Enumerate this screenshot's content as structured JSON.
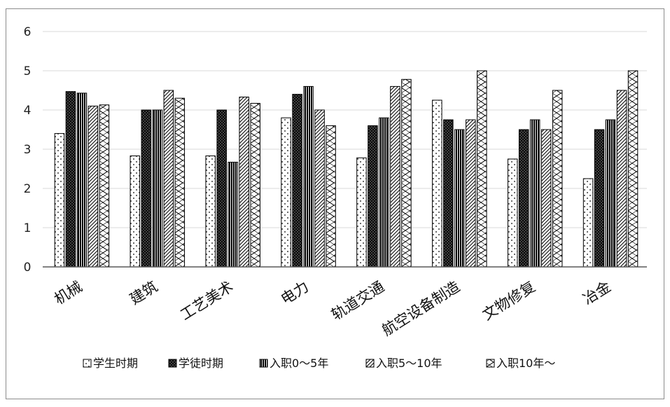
{
  "chart_data": {
    "type": "bar",
    "categories": [
      "机械",
      "建筑",
      "工艺美术",
      "电力",
      "轨道交通",
      "航空设备制造",
      "文物修复",
      "冶金"
    ],
    "series": [
      {
        "name": "学生时期",
        "pattern": "dots",
        "values": [
          3.4,
          2.83,
          2.83,
          3.8,
          2.78,
          4.25,
          2.75,
          2.25
        ]
      },
      {
        "name": "学徒时期",
        "pattern": "crosshatch",
        "values": [
          4.47,
          4.0,
          4.0,
          4.4,
          3.6,
          3.75,
          3.5,
          3.5
        ]
      },
      {
        "name": "入职0～5年",
        "pattern": "vertical",
        "values": [
          4.43,
          4.0,
          2.67,
          4.6,
          3.8,
          3.5,
          3.75,
          3.75
        ]
      },
      {
        "name": "入职5～10年",
        "pattern": "diagonal",
        "values": [
          4.1,
          4.5,
          4.33,
          4.0,
          4.6,
          3.75,
          3.5,
          4.5
        ]
      },
      {
        "name": "入职10年～",
        "pattern": "zigzag",
        "values": [
          4.13,
          4.3,
          4.17,
          3.6,
          4.78,
          5.0,
          4.5,
          5.0
        ]
      }
    ],
    "ylim": [
      0,
      6
    ],
    "yticks": [
      "0",
      "1",
      "2",
      "3",
      "4",
      "5",
      "6"
    ],
    "grid": true,
    "legend": "bottom",
    "title": "",
    "xlabel": "",
    "ylabel": ""
  },
  "colors": {
    "bar_fill": "#ffffff",
    "bar_stroke": "#000000",
    "grid": "#d9d9d9",
    "axis": "#595959"
  }
}
